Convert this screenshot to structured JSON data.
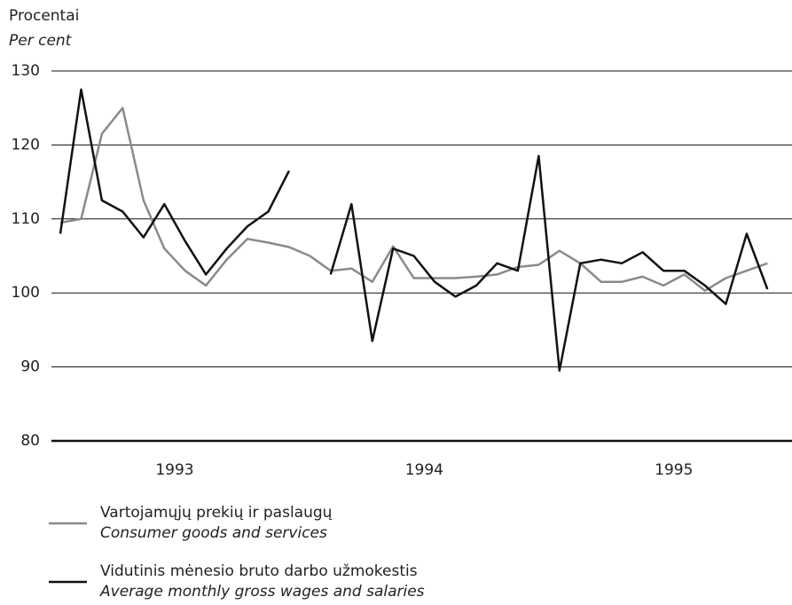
{
  "chart_data": {
    "type": "line",
    "y_label": "Procentai",
    "y_label_en": "Per cent",
    "categories": [
      null,
      null,
      null,
      null,
      null,
      "1993",
      null,
      null,
      null,
      null,
      null,
      null,
      null,
      null,
      null,
      null,
      null,
      "1994",
      null,
      null,
      null,
      null,
      null,
      null,
      null,
      null,
      null,
      null,
      null,
      "1995",
      null,
      null,
      null,
      null,
      null,
      null
    ],
    "series": [
      {
        "name": "Vartojamųjų prekių ir paslaugų",
        "name_en": "Consumer goods and services",
        "color": "#8a8a8a",
        "values": [
          109.5,
          110,
          121.5,
          125,
          112.5,
          106,
          103,
          101,
          104.5,
          107.3,
          106.8,
          106.2,
          105,
          103,
          103.3,
          101.5,
          106.3,
          102,
          102,
          102,
          102.2,
          102.5,
          103.5,
          103.8,
          105.7,
          104,
          101.5,
          101.5,
          102.2,
          101,
          102.5,
          100.3,
          102,
          103,
          104,
          null
        ]
      },
      {
        "name": "Vidutinis mėnesio bruto darbo užmokestis",
        "name_en": "Average monthly gross wages and salaries",
        "color": "#111111",
        "values": [
          108,
          127.5,
          112.5,
          111,
          107.5,
          112,
          107,
          102.5,
          106,
          109,
          111,
          116.5,
          null,
          102.5,
          112,
          93.5,
          106,
          105,
          101.5,
          99.5,
          101,
          104,
          103,
          118.5,
          89.5,
          104,
          104.5,
          104,
          105.5,
          103,
          103,
          101,
          98.5,
          108,
          100.5,
          null
        ]
      }
    ],
    "ylim": [
      80,
      130
    ],
    "yticks": [
      80,
      90,
      100,
      110,
      120,
      130
    ],
    "grid": true
  }
}
